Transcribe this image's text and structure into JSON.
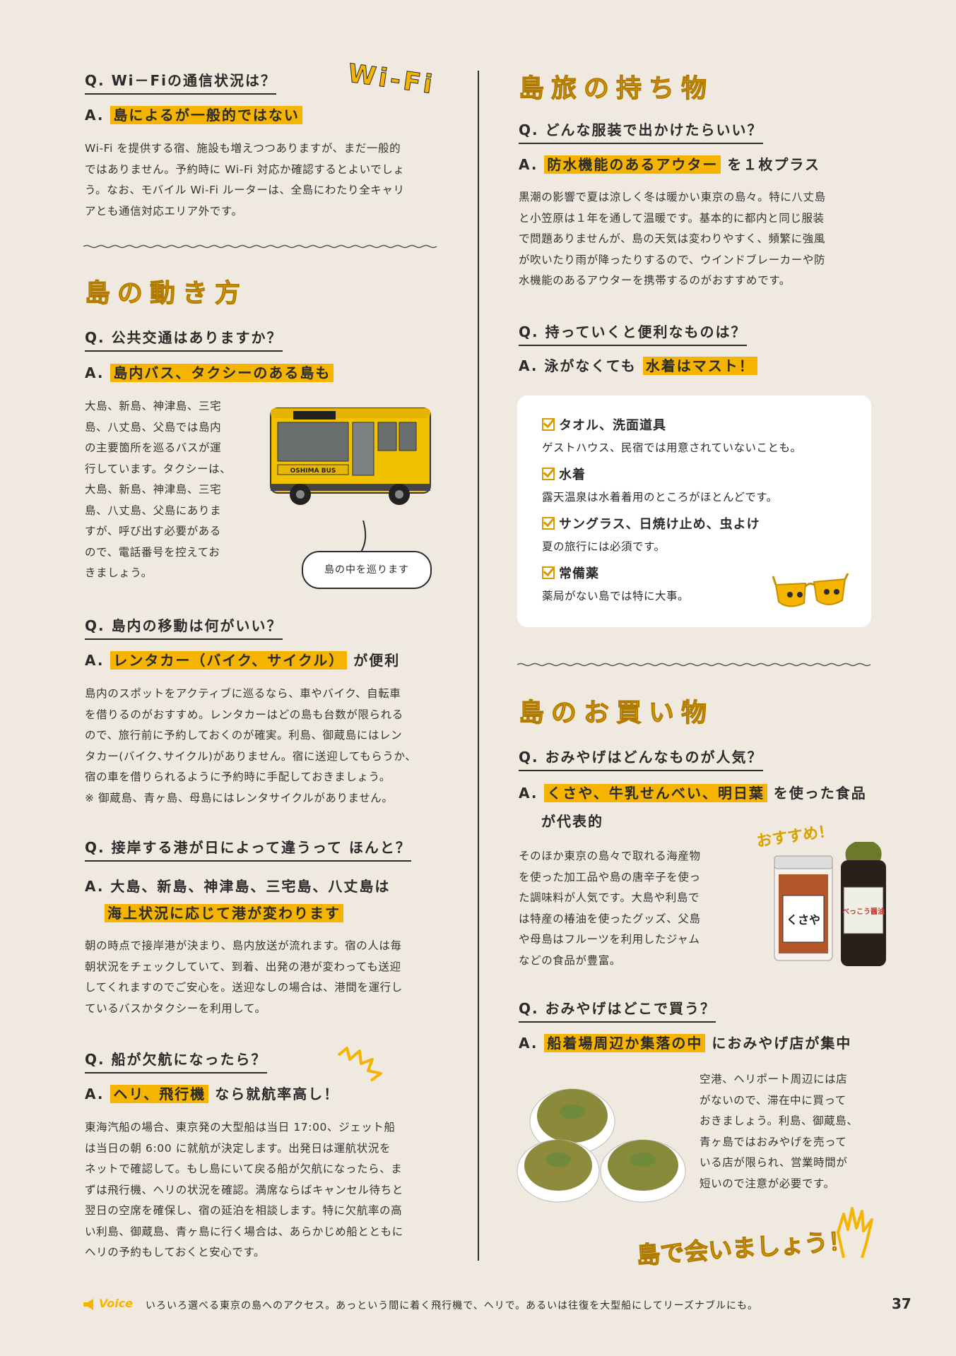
{
  "left": {
    "wifi": {
      "q": "Q. Wi－Fiの通信状況は？",
      "a": "島によるが一般的ではない",
      "body": "Wi-Fi を提供する宿、施設も増えつつありますが、まだ一般的\nではありません。予約時に Wi-Fi 対応か確認するとよいでしょ\nう。なお、モバイル Wi-Fi ルーターは、全島にわたり全キャリ\nアとも通信対応エリア外です。",
      "deco": "Wi-Fi"
    },
    "section_title": "島の動き方",
    "transit": {
      "q": "Q. 公共交通はありますか？",
      "a": "島内バス、タクシーのある島も",
      "body": "大島、新島、神津島、三宅\n島、八丈島、父島では島内\nの主要箇所を巡るバスが運\n行しています。タクシーは、\n大島、新島、神津島、三宅\n島、八丈島、父島にありま\nすが、呼び出す必要がある\nので、電話番号を控えてお\nきましょう。",
      "bubble": "島の中を巡ります",
      "bus_text": "OSHIMA BUS"
    },
    "move": {
      "q": "Q. 島内の移動は何がいい？",
      "a_hl": "レンタカー（バイク、サイクル）",
      "a_rest": "が便利",
      "body": "島内のスポットをアクティブに巡るなら、車やバイク、自転車\nを借りるのがおすすめ。レンタカーはどの島も台数が限られる\nので、旅行前に予約しておくのが確実。利島、御蔵島にはレン\nタカー(バイク､サイクル)がありません。宿に送迎してもらうか、\n宿の車を借りられるように予約時に手配しておきましょう。\n※ 御蔵島、青ヶ島、母島にはレンタサイクルがありません。"
    },
    "port": {
      "q": "Q. 接岸する港が日によって違うって ほんと？",
      "a1": "A. 大島、新島、神津島、三宅島、八丈島は",
      "a2": "海上状況に応じて港が変わります",
      "body": "朝の時点で接岸港が決まり、島内放送が流れます。宿の人は毎\n朝状況をチェックしていて、到着、出発の港が変わっても送迎\nしてくれますのでご安心を。送迎なしの場合は、港間を運行し\nているバスかタクシーを利用して。"
    },
    "cancel": {
      "q": "Q. 船が欠航になったら？",
      "a_hl": "ヘリ、飛行機",
      "a_rest": "なら就航率高し！",
      "body": "東海汽船の場合、東京発の大型船は当日 17:00、ジェット船\nは当日の朝 6:00 に就航が決定します。出発日は運航状況を\nネットで確認して。もし島にいて戻る船が欠航になったら、ま\nずは飛行機、ヘリの状況を確認。満席ならばキャンセル待ちと\n翌日の空席を確保し、宿の延泊を相談します。特に欠航率の高\nい利島、御蔵島、青ヶ島に行く場合は、あらかじめ船とともに\nヘリの予約もしておくと安心です。"
    }
  },
  "right": {
    "section_title_1": "島旅の持ち物",
    "clothes": {
      "q": "Q. どんな服装で出かけたらいい？",
      "a_hl": "防水機能のあるアウター",
      "a_rest": "を１枚プラス",
      "body": "黒潮の影響で夏は涼しく冬は暖かい東京の島々。特に八丈島\nと小笠原は１年を通して温暖です。基本的に都内と同じ服装\nで問題ありませんが、島の天気は変わりやすく、頻繁に強風\nが吹いたり雨が降ったりするので、ウインドブレーカーや防\n水機能のあるアウターを携帯するのがおすすめです。"
    },
    "items": {
      "q": "Q. 持っていくと便利なものは？",
      "a_pre": "A. 泳がなくても",
      "a_hl": "水着はマスト！",
      "list": [
        {
          "title": "タオル、洗面道具",
          "desc": "ゲストハウス、民宿では用意されていないことも。"
        },
        {
          "title": "水着",
          "desc": "露天温泉は水着着用のところがほとんどです。"
        },
        {
          "title": "サングラス、日焼け止め、虫よけ",
          "desc": "夏の旅行には必須です。"
        },
        {
          "title": "常備薬",
          "desc": "薬局がない島では特に大事。"
        }
      ]
    },
    "section_title_2": "島のお買い物",
    "souvenir": {
      "q": "Q. おみやげはどんなものが人気？",
      "a_hl": "くさや、牛乳せんべい、明日葉",
      "a_rest": "を使った食品",
      "a_line2": "が代表的",
      "body": "そのほか東京の島々で取れる海産物\nを使った加工品や島の唐辛子を使っ\nた調味料が人気です。大島や利島で\nは特産の椿油を使ったグッズ、父島\nや母島はフルーツを利用したジャム\nなどの食品が豊富。",
      "recommend": "おすすめ！",
      "jar_label": "くさや",
      "bottle_label": "べっこう醤油"
    },
    "where": {
      "q": "Q. おみやげはどこで買う？",
      "a_hl": "船着場周辺か集落の中",
      "a_rest": "におみやげ店が集中",
      "body": "空港、ヘリポート周辺には店\nがないので、滞在中に買って\nおきましょう。利島、御蔵島、\n青ヶ島ではおみやげを売って\nいる店が限られ、営業時間が\n短いので注意が必要です。",
      "closing": "島で会いましょう！"
    }
  },
  "footer": {
    "voice_label": "Voice",
    "text": "いろいろ選べる東京の島へのアクセス。あっという間に着く飛行機で、ヘリで。あるいは往復を大型船にしてリーズナブルにも。",
    "page": "37"
  }
}
